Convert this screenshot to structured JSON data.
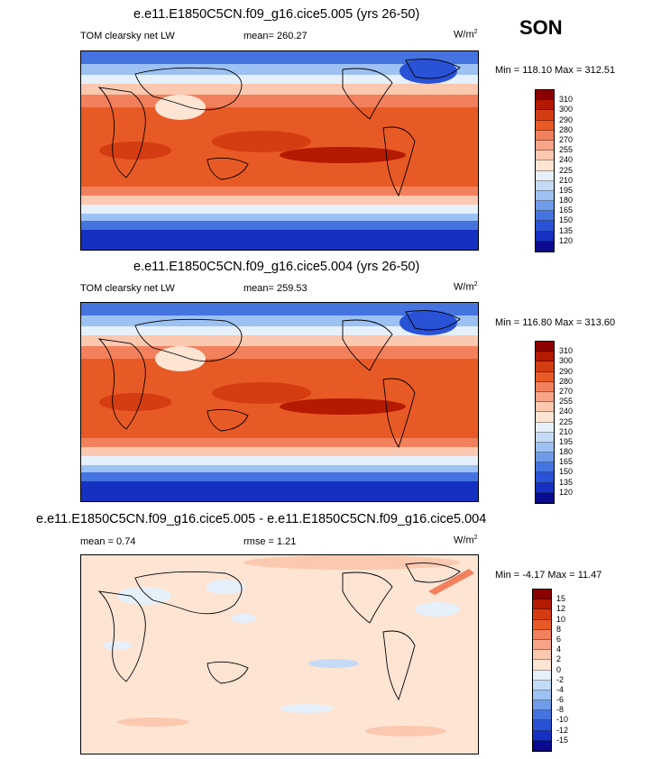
{
  "season": "SON",
  "panels": [
    {
      "title": "e.e11.E1850C5CN.f09_g16.cice5.005 (yrs 26-50)",
      "left_label": "TOM clearsky net LW",
      "center_label": "mean= 260.27",
      "units": "W/m",
      "units_sup": "2",
      "minmax": "Min = 118.10 Max = 312.51"
    },
    {
      "title": "e.e11.E1850C5CN.f09_g16.cice5.004 (yrs 26-50)",
      "left_label": "TOM clearsky net LW",
      "center_label": "mean= 259.53",
      "units": "W/m",
      "units_sup": "2",
      "minmax": "Min = 116.80 Max = 313.60"
    },
    {
      "title": "e.e11.E1850C5CN.f09_g16.cice5.005 - e.e11.E1850C5CN.f09_g16.cice5.004",
      "left_label": "mean =   0.74",
      "center_label": "rmse =   1.21",
      "units": "W/m",
      "units_sup": "2",
      "minmax": "Min =  -4.17 Max =  11.47"
    }
  ],
  "colorbar_abs": {
    "labels": [
      "310",
      "300",
      "290",
      "280",
      "270",
      "255",
      "240",
      "225",
      "210",
      "195",
      "180",
      "165",
      "150",
      "135",
      "120"
    ],
    "colors": [
      "#8b0000",
      "#b31a00",
      "#d43d12",
      "#e85a25",
      "#f2805c",
      "#f7a488",
      "#fbc8b0",
      "#fde4d3",
      "#e6f0fb",
      "#c4dbf7",
      "#9cc1f2",
      "#6f9be9",
      "#4573e0",
      "#2a52d6",
      "#1630c2",
      "#0a0a90"
    ]
  },
  "colorbar_diff": {
    "labels": [
      "15",
      "12",
      "10",
      "8",
      "6",
      "4",
      "2",
      "0",
      "-2",
      "-4",
      "-6",
      "-8",
      "-10",
      "-12",
      "-15"
    ],
    "colors": [
      "#8b0000",
      "#b31a00",
      "#d43d12",
      "#e85a25",
      "#f2805c",
      "#f7a488",
      "#fbc8b0",
      "#fde4d3",
      "#e6f0fb",
      "#c4dbf7",
      "#9cc1f2",
      "#6f9be9",
      "#4573e0",
      "#2a52d6",
      "#1630c2",
      "#0a0a90"
    ]
  },
  "chart_data": [
    {
      "type": "heatmap",
      "title": "e.e11.E1850C5CN.f09_g16.cice5.005 (yrs 26-50)",
      "variable": "TOM clearsky net LW",
      "units": "W/m2",
      "mean": 260.27,
      "min": 118.1,
      "max": 312.51,
      "contour_levels": [
        120,
        135,
        150,
        165,
        180,
        195,
        210,
        225,
        240,
        255,
        270,
        280,
        290,
        300,
        310
      ]
    },
    {
      "type": "heatmap",
      "title": "e.e11.E1850C5CN.f09_g16.cice5.004 (yrs 26-50)",
      "variable": "TOM clearsky net LW",
      "units": "W/m2",
      "mean": 259.53,
      "min": 116.8,
      "max": 313.6,
      "contour_levels": [
        120,
        135,
        150,
        165,
        180,
        195,
        210,
        225,
        240,
        255,
        270,
        280,
        290,
        300,
        310
      ]
    },
    {
      "type": "heatmap",
      "title": "e.e11.E1850C5CN.f09_g16.cice5.005 - e.e11.E1850C5CN.f09_g16.cice5.004",
      "units": "W/m2",
      "mean": 0.74,
      "rmse": 1.21,
      "min": -4.17,
      "max": 11.47,
      "contour_levels": [
        -15,
        -12,
        -10,
        -8,
        -6,
        -4,
        -2,
        0,
        2,
        4,
        6,
        8,
        10,
        12,
        15
      ]
    }
  ]
}
